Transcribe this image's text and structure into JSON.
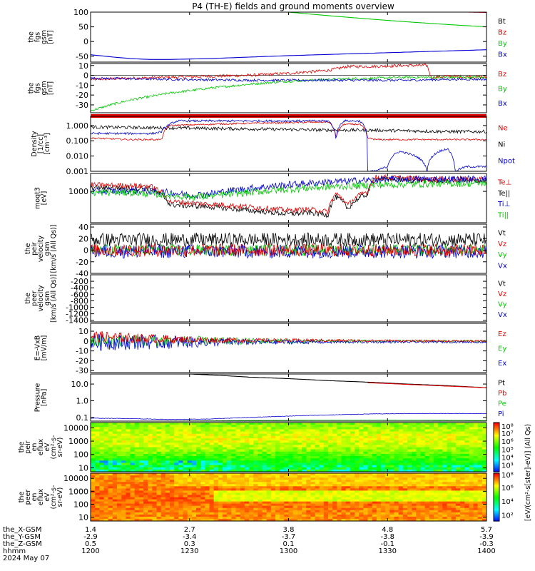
{
  "title": "P4 (TH-E) fields and ground moments overview",
  "colors": {
    "black": "#000000",
    "red": "#e00000",
    "green": "#00c800",
    "blue": "#0000d0",
    "axis": "#000000"
  },
  "chart_data": [
    {
      "type": "line",
      "ylabel": [
        "the",
        "fgs",
        "gsm",
        "[nT]"
      ],
      "ylim": [
        -70,
        100
      ],
      "yticks": [
        "100",
        "50",
        "0",
        "-50"
      ],
      "ytick_values": [
        100,
        50,
        0,
        -50
      ],
      "legend": [
        "Bt",
        "Bz",
        "By",
        "Bx"
      ],
      "legend_colors": [
        "#000000",
        "#e00000",
        "#00c800",
        "#0000d0"
      ],
      "series": [
        {
          "label": "Bt",
          "color": "#000000",
          "x": [
            0.08,
            0.55,
            0.95,
            1.0
          ],
          "y": [
            120,
            113,
            107,
            106
          ]
        },
        {
          "label": "Bz",
          "color": "#e00000",
          "x": [
            0.8,
            0.85,
            0.9,
            0.95,
            1.0
          ],
          "y": [
            104,
            102,
            101,
            100,
            99
          ]
        },
        {
          "label": "By",
          "color": "#00c800",
          "x": [
            0.5,
            0.6,
            0.7,
            0.8,
            0.9,
            1.0
          ],
          "y": [
            100,
            88,
            77,
            67,
            58,
            50
          ]
        },
        {
          "label": "Bx",
          "color": "#0000d0",
          "x": [
            0,
            0.05,
            0.1,
            0.15,
            0.2,
            0.3,
            0.4,
            0.5,
            0.6,
            0.7,
            0.8,
            0.9,
            1.0
          ],
          "y": [
            -45,
            -52,
            -58,
            -61,
            -61,
            -58,
            -53,
            -48,
            -44,
            -40,
            -36,
            -32,
            -28
          ]
        }
      ]
    },
    {
      "type": "line",
      "ylabel": [
        "the",
        "fgs",
        "gsm",
        "[nT]"
      ],
      "ylim": [
        -38,
        12
      ],
      "yticks": [
        "10",
        "0",
        "-10",
        "-20",
        "-30"
      ],
      "ytick_values": [
        10,
        0,
        -10,
        -20,
        -30
      ],
      "legend": [
        "Bz",
        "By",
        "Bx"
      ],
      "legend_colors": [
        "#e00000",
        "#00c800",
        "#0000d0"
      ],
      "series": [
        {
          "label": "Bz",
          "color": "#e00000",
          "noise": 1.5,
          "x": [
            0,
            0.1,
            0.2,
            0.3,
            0.4,
            0.5,
            0.6,
            0.65,
            0.7,
            0.8,
            0.85,
            0.86,
            0.9,
            1.0
          ],
          "y": [
            -4,
            -3,
            -2,
            -1,
            0,
            2,
            5,
            9,
            9,
            10,
            10,
            -2,
            -1,
            -2
          ]
        },
        {
          "label": "By",
          "color": "#00c800",
          "noise": 1.2,
          "x": [
            0,
            0.05,
            0.1,
            0.2,
            0.3,
            0.4,
            0.5,
            0.6,
            0.7,
            0.8,
            0.9,
            1.0
          ],
          "y": [
            -36,
            -30,
            -25,
            -18,
            -13,
            -9,
            -6,
            -4,
            -3,
            -2,
            -2,
            -2
          ]
        },
        {
          "label": "Bx",
          "color": "#0000d0",
          "noise": 1.2,
          "x": [
            0,
            0.2,
            0.4,
            0.6,
            0.8,
            0.9,
            1.0
          ],
          "y": [
            -3,
            -4,
            -5,
            -5,
            -5,
            -4,
            -4
          ]
        }
      ]
    },
    {
      "type": "line",
      "ylabel": [
        "Density",
        "[1/cc]",
        "[cm⁻³]"
      ],
      "scale": "log",
      "ylim": [
        0.001,
        4.0
      ],
      "yticks": [
        "1.000",
        "0.100",
        "0.010",
        "0.001"
      ],
      "ytick_values": [
        1.0,
        0.1,
        0.01,
        0.001
      ],
      "legend": [
        "Ne",
        "Ni",
        "Npot"
      ],
      "legend_colors": [
        "#e00000",
        "#000000",
        "#0000d0"
      ],
      "series": [
        {
          "label": "Ni",
          "color": "#000000",
          "noise": 0.06,
          "x": [
            0,
            0.1,
            0.2,
            0.3,
            0.4,
            0.5,
            0.6,
            0.7,
            0.8,
            0.9,
            1.0
          ],
          "y": [
            0.8,
            0.75,
            0.7,
            0.65,
            0.6,
            0.55,
            0.5,
            0.5,
            0.45,
            0.4,
            0.4
          ]
        },
        {
          "label": "Ne",
          "color": "#e00000",
          "noise": 0.03,
          "x": [
            0,
            0.1,
            0.15,
            0.18,
            0.2,
            0.4,
            0.6,
            0.62,
            0.64,
            0.68,
            0.7,
            0.72,
            0.75,
            0.9,
            1.0
          ],
          "y": [
            0.15,
            0.12,
            0.12,
            0.12,
            1.0,
            1.4,
            1.7,
            0.15,
            1.2,
            1.2,
            0.15,
            0.12,
            0.12,
            0.12,
            0.12
          ]
        },
        {
          "label": "Npot",
          "color": "#0000d0",
          "noise": 0.04,
          "x": [
            0,
            0.16,
            0.18,
            0.22,
            0.4,
            0.6,
            0.62,
            0.64,
            0.68,
            0.7,
            0.72,
            0.75,
            0.78,
            0.82,
            0.85,
            0.88,
            0.9,
            0.92,
            0.95,
            1.0
          ],
          "y": [
            0.3,
            0.3,
            0.4,
            2.0,
            2.0,
            2.0,
            0.1,
            2.0,
            2.0,
            0.001,
            0.001,
            0.002,
            0.02,
            0.01,
            0.001,
            0.02,
            0.03,
            0.001,
            0.002,
            0.002
          ]
        }
      ]
    },
    {
      "type": "line",
      "ylabel": [
        "moqt3",
        "[eV]"
      ],
      "scale": "log",
      "ylim": [
        60,
        5000
      ],
      "yticks": [
        "1000"
      ],
      "ytick_values": [
        1000
      ],
      "legend": [
        "Te⊥",
        "Te||",
        "Ti⊥",
        "Ti||"
      ],
      "legend_colors": [
        "#e00000",
        "#000000",
        "#0000d0",
        "#00c800"
      ],
      "series": [
        {
          "label": "Te||",
          "color": "#000000",
          "noise": 0.06,
          "x": [
            0,
            0.15,
            0.2,
            0.3,
            0.4,
            0.5,
            0.55,
            0.6,
            0.62,
            0.65,
            0.7,
            0.72,
            0.75,
            0.85,
            1.0
          ],
          "y": [
            1400,
            1300,
            300,
            250,
            180,
            130,
            150,
            120,
            600,
            200,
            800,
            3000,
            3000,
            2600,
            2600
          ]
        },
        {
          "label": "Te⊥",
          "color": "#e00000",
          "noise": 0.06,
          "x": [
            0,
            0.15,
            0.2,
            0.3,
            0.4,
            0.5,
            0.55,
            0.6,
            0.62,
            0.65,
            0.7,
            0.72,
            0.75,
            0.85,
            1.0
          ],
          "y": [
            1800,
            1600,
            400,
            320,
            250,
            180,
            200,
            160,
            800,
            280,
            1000,
            3500,
            3500,
            3000,
            3000
          ]
        },
        {
          "label": "Ti⊥",
          "color": "#0000d0",
          "noise": 0.08,
          "x": [
            0,
            0.1,
            0.2,
            0.25,
            0.3,
            0.4,
            0.5,
            0.6,
            0.7,
            0.8,
            0.9,
            1.0
          ],
          "y": [
            1000,
            1050,
            900,
            700,
            800,
            1300,
            1800,
            2300,
            2700,
            3000,
            3000,
            3000
          ]
        },
        {
          "label": "Ti||",
          "color": "#00c800",
          "noise": 0.08,
          "x": [
            0,
            0.1,
            0.2,
            0.25,
            0.3,
            0.4,
            0.5,
            0.6,
            0.7,
            0.8,
            0.9,
            1.0
          ],
          "y": [
            900,
            900,
            700,
            600,
            650,
            900,
            1200,
            1500,
            1700,
            1900,
            2000,
            2100
          ]
        }
      ]
    },
    {
      "type": "line",
      "ylabel": [
        "the",
        "peir",
        "velocity",
        "gsm",
        "[km/s (All Qs)]"
      ],
      "ylim": [
        -40,
        45
      ],
      "yticks": [
        "40",
        "20",
        "0",
        "-20",
        "-40"
      ],
      "ytick_values": [
        40,
        20,
        0,
        -20,
        -40
      ],
      "legend": [
        "Vt",
        "Vz",
        "Vy",
        "Vx"
      ],
      "legend_colors": [
        "#000000",
        "#e00000",
        "#00c800",
        "#0000d0"
      ],
      "series": [
        {
          "label": "Vt",
          "color": "#000000",
          "noise": 12,
          "x": [
            0,
            1.0
          ],
          "y": [
            18,
            18
          ]
        },
        {
          "label": "Vy",
          "color": "#00c800",
          "noise": 10,
          "x": [
            0,
            1.0
          ],
          "y": [
            0,
            0
          ]
        },
        {
          "label": "Vx",
          "color": "#0000d0",
          "noise": 12,
          "x": [
            0,
            1.0
          ],
          "y": [
            -2,
            -2
          ]
        },
        {
          "label": "Vz",
          "color": "#e00000",
          "noise": 11,
          "x": [
            0,
            1.0
          ],
          "y": [
            0,
            0
          ]
        }
      ]
    },
    {
      "type": "line",
      "ylabel": [
        "the",
        "peer",
        "velocity",
        "gsm",
        "[km/s (All Qs)]"
      ],
      "ylim": [
        -1450,
        0
      ],
      "yticks": [
        "-200",
        "-400",
        "-600",
        "-800",
        "-1000",
        "-1200",
        "-1400"
      ],
      "ytick_values": [
        -200,
        -400,
        -600,
        -800,
        -1000,
        -1200,
        -1400
      ],
      "legend": [
        "Vt",
        "Vz",
        "Vy",
        "Vx"
      ],
      "legend_colors": [
        "#000000",
        "#e00000",
        "#00c800",
        "#0000d0"
      ],
      "series": []
    },
    {
      "type": "line",
      "ylabel": [
        "E=-VxB",
        "[mV/m]"
      ],
      "ylim": [
        -32,
        18
      ],
      "yticks": [
        "10",
        "0",
        "-10",
        "-20",
        "-30"
      ],
      "ytick_values": [
        10,
        0,
        -10,
        -20,
        -30
      ],
      "legend": [
        "Ez",
        "Ey",
        "Ex"
      ],
      "legend_colors": [
        "#e00000",
        "#00c800",
        "#0000d0"
      ],
      "series": [
        {
          "label": "Ey",
          "color": "#00c800",
          "noise_profile": [
            8,
            6,
            3,
            1.5,
            1,
            1
          ],
          "x": [
            0,
            1.0
          ],
          "y": [
            0,
            0
          ]
        },
        {
          "label": "Ex",
          "color": "#0000d0",
          "noise_profile": [
            9,
            7,
            3,
            1.5,
            1,
            1
          ],
          "x": [
            0,
            1.0
          ],
          "y": [
            -1,
            -1
          ]
        },
        {
          "label": "Ez",
          "color": "#e00000",
          "noise_profile": [
            6,
            4,
            2,
            1.5,
            1,
            1
          ],
          "x": [
            0,
            0.1,
            0.3,
            1.0
          ],
          "y": [
            5,
            3,
            1,
            0
          ]
        }
      ]
    },
    {
      "type": "line",
      "ylabel": [
        "Pressure",
        "[nPa]"
      ],
      "scale": "log",
      "ylim": [
        0.06,
        40
      ],
      "yticks": [
        "10.0",
        "1.0",
        "0.1"
      ],
      "ytick_values": [
        10,
        1,
        0.1
      ],
      "legend": [
        "Pt",
        "Pb",
        "Pe",
        "Pi"
      ],
      "legend_colors": [
        "#000000",
        "#e00000",
        "#00c800",
        "#0000d0"
      ],
      "series": [
        {
          "label": "Pt",
          "color": "#000000",
          "x": [
            0.25,
            0.4,
            0.6,
            0.8,
            1.0
          ],
          "y": [
            40,
            26,
            16,
            10,
            6
          ]
        },
        {
          "label": "Pb",
          "color": "#e00000",
          "x": [
            0.7,
            0.8,
            0.9,
            1.0
          ],
          "y": [
            12,
            9.5,
            7.5,
            6
          ]
        },
        {
          "label": "Pe",
          "color": "#00c800",
          "noise": 0.003,
          "x": [
            0,
            0.2,
            0.4,
            0.6,
            0.8,
            1.0
          ],
          "y": [
            0.06,
            0.06,
            0.065,
            0.07,
            0.07,
            0.065
          ]
        },
        {
          "label": "Pi",
          "color": "#0000d0",
          "noise": 0.008,
          "x": [
            0,
            0.1,
            0.2,
            0.3,
            0.5,
            0.7,
            0.8,
            1.0
          ],
          "y": [
            0.09,
            0.085,
            0.075,
            0.08,
            0.12,
            0.16,
            0.17,
            0.17
          ]
        }
      ]
    },
    {
      "type": "heatmap",
      "ylabel": [
        "the",
        "peir",
        "en",
        "eflux",
        "eV",
        "(cm²-s-",
        "sr-eV)"
      ],
      "scale": "log",
      "ylim": [
        5,
        25000
      ],
      "yticks": [
        "10000",
        "1000",
        "100",
        "10"
      ],
      "ytick_values": [
        10000,
        1000,
        100,
        10
      ],
      "colorbar_ticks": [
        "10⁸",
        "10⁷",
        "10⁶",
        "10⁵",
        "10⁴",
        "10³"
      ],
      "colorbar_tick_fractions": [
        0.93,
        0.78,
        0.62,
        0.46,
        0.3,
        0.14
      ]
    },
    {
      "type": "heatmap",
      "ylabel": [
        "the",
        "peer",
        "en",
        "eflux",
        "eV",
        "(cm²-s-",
        "sr-eV)"
      ],
      "scale": "log",
      "ylim": [
        5,
        25000
      ],
      "yticks": [
        "10000",
        "1000",
        "100",
        "10"
      ],
      "ytick_values": [
        10000,
        1000,
        100,
        10
      ],
      "colorbar_ticks": [
        "10⁸",
        "10⁶",
        "10⁴",
        "10²"
      ],
      "colorbar_tick_fractions": [
        0.97,
        0.7,
        0.42,
        0.13
      ]
    }
  ],
  "colorbar_label": "[eV/(cm²-s[ster]-eV)] (All Qs)",
  "x_axis": {
    "row_labels": [
      "the_X-GSM",
      "the_Y-GSM",
      "the_Z-GSM",
      "hhmm",
      "2024 May 07"
    ],
    "columns": [
      {
        "fraction": 0.0,
        "values": [
          "1.4",
          "-2.9",
          "0.5",
          "1200"
        ]
      },
      {
        "fraction": 0.25,
        "values": [
          "2.7",
          "-3.4",
          "0.3",
          "1230"
        ]
      },
      {
        "fraction": 0.5,
        "values": [
          "3.8",
          "-3.7",
          "0.1",
          "1300"
        ]
      },
      {
        "fraction": 0.75,
        "values": [
          "4.8",
          "-3.8",
          "-0.1",
          "1330"
        ]
      },
      {
        "fraction": 1.0,
        "values": [
          "5.7",
          "-3.9",
          "-0.3",
          "1400"
        ]
      }
    ]
  }
}
